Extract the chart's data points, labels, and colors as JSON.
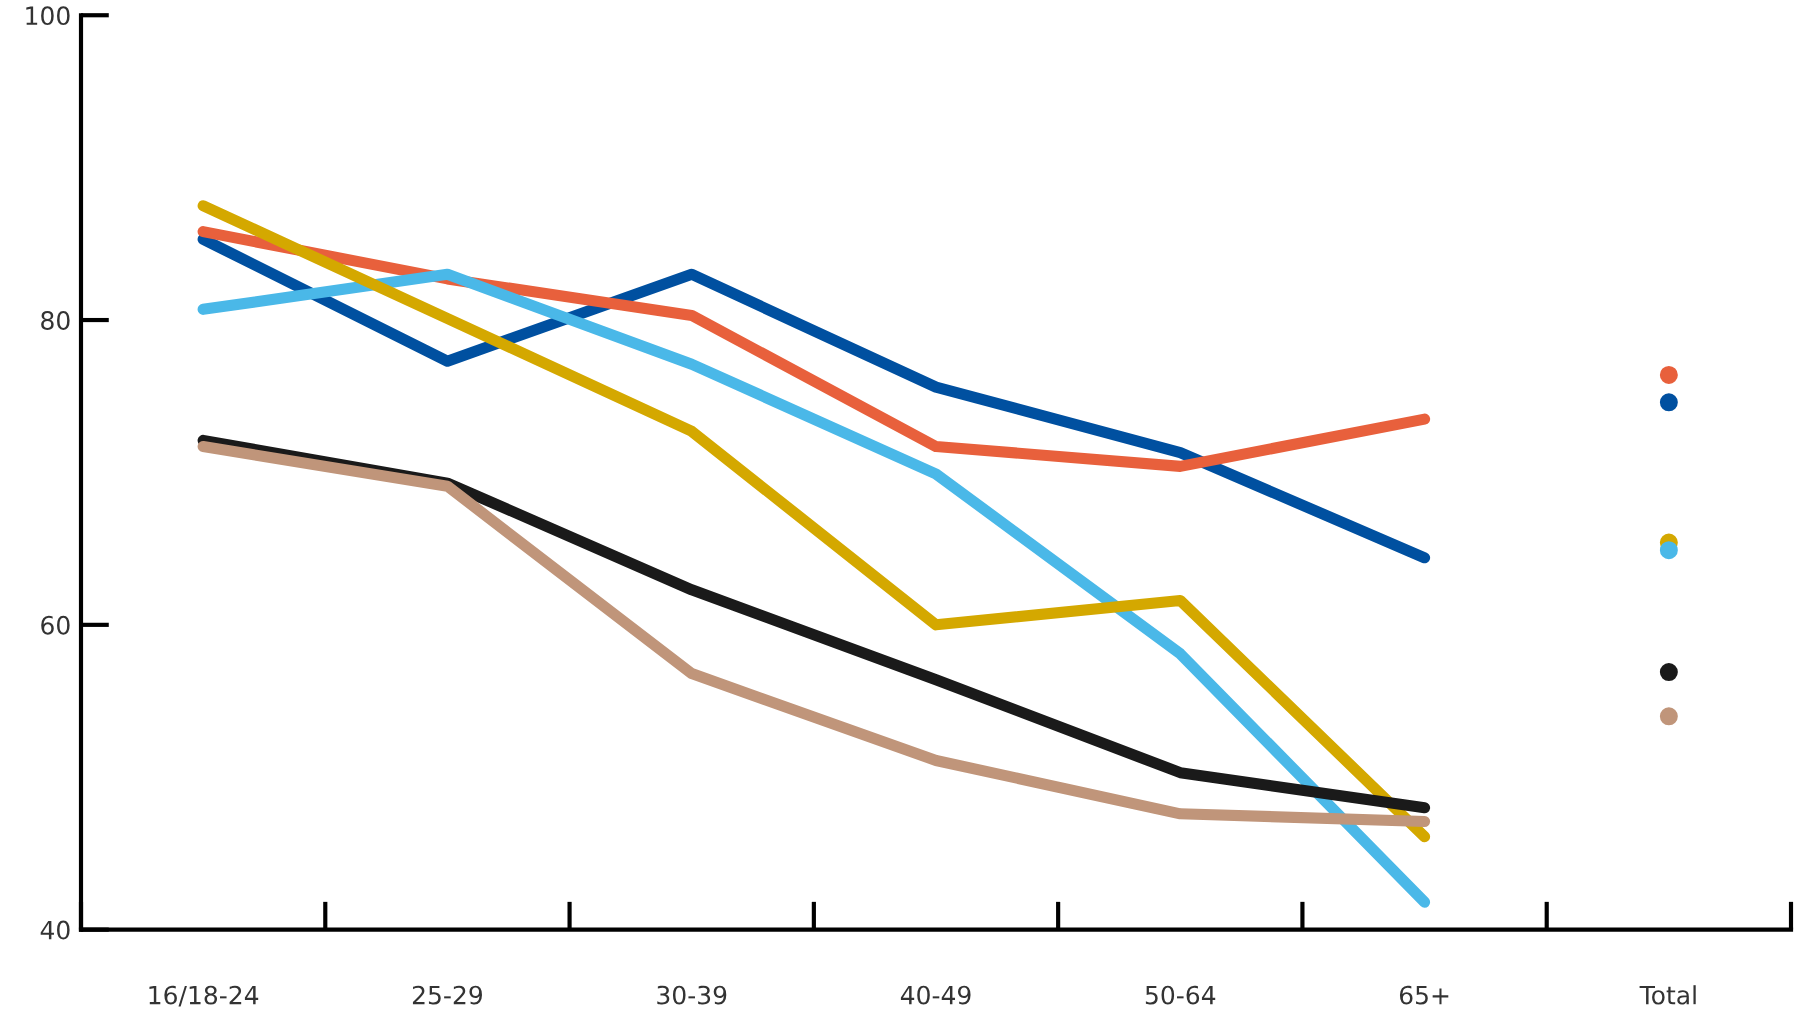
{
  "chart_data": {
    "type": "line",
    "categories": [
      "16/18-24",
      "25-29",
      "30-39",
      "40-49",
      "50-64",
      "65+",
      "Total"
    ],
    "ylim": [
      40,
      100
    ],
    "yticks": [
      40,
      60,
      80,
      100
    ],
    "grid": false,
    "legend": false,
    "series": [
      {
        "color": "#0050a0",
        "values": [
          85.3,
          77.3,
          83.0,
          75.6,
          71.3,
          64.4,
          null
        ]
      },
      {
        "color": "#e8603c",
        "values": [
          85.8,
          82.7,
          80.3,
          71.7,
          70.4,
          73.5,
          null
        ]
      },
      {
        "color": "#4ab8e8",
        "values": [
          80.7,
          83.0,
          77.1,
          69.9,
          58.1,
          41.8,
          null
        ]
      },
      {
        "color": "#d4a800",
        "values": [
          87.5,
          80.1,
          72.7,
          60.0,
          61.6,
          46.1,
          null
        ]
      },
      {
        "color": "#1a1a1a",
        "values": [
          72.1,
          69.3,
          62.3,
          56.4,
          50.3,
          48.0,
          null
        ]
      },
      {
        "color": "#c0957a",
        "values": [
          71.7,
          69.1,
          56.8,
          51.1,
          47.6,
          47.1,
          null
        ]
      },
      {
        "type": "scatter",
        "marker": "circle",
        "color": "#e8603c",
        "values": [
          null,
          null,
          null,
          null,
          null,
          null,
          76.4
        ]
      },
      {
        "type": "scatter",
        "marker": "circle",
        "color": "#0050a0",
        "values": [
          null,
          null,
          null,
          null,
          null,
          null,
          74.6
        ]
      },
      {
        "type": "scatter",
        "marker": "circle",
        "color": "#d4a800",
        "values": [
          null,
          null,
          null,
          null,
          null,
          null,
          65.4
        ]
      },
      {
        "type": "scatter",
        "marker": "circle",
        "color": "#4ab8e8",
        "values": [
          null,
          null,
          null,
          null,
          null,
          null,
          64.9
        ]
      },
      {
        "type": "scatter",
        "marker": "circle",
        "color": "#1a1a1a",
        "values": [
          null,
          null,
          null,
          null,
          null,
          null,
          56.9
        ]
      },
      {
        "type": "scatter",
        "marker": "circle",
        "color": "#c0957a",
        "values": [
          null,
          null,
          null,
          null,
          null,
          null,
          54.0
        ]
      }
    ]
  }
}
